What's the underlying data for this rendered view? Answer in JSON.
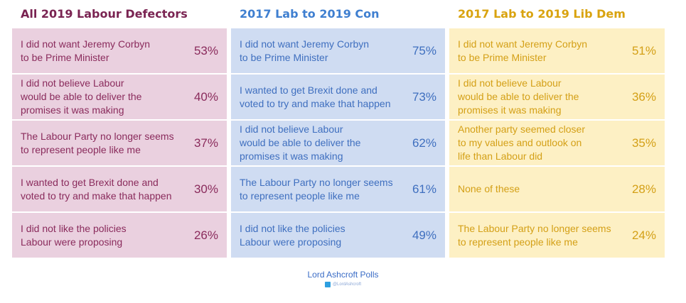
{
  "colors": {
    "col1_bg": "#ead0df",
    "col1_title": "#7a2452",
    "col1_text": "#8a2b5c",
    "col2_bg": "#cfdcf2",
    "col2_title": "#3f7fd0",
    "col2_text": "#3f6fbf",
    "col3_bg": "#fdf0c4",
    "col3_title": "#d9a30f",
    "col3_text": "#d4a017"
  },
  "chart_data": [
    {
      "type": "table",
      "title": "All 2019 Labour Defectors",
      "rows": [
        {
          "label": "I did not want Jeremy Corbyn\nto be Prime Minister",
          "value": "53%"
        },
        {
          "label": "I did not believe Labour\nwould be able to deliver the\npromises it was making",
          "value": "40%"
        },
        {
          "label": "The Labour Party no longer seems\nto represent people like me",
          "value": "37%"
        },
        {
          "label": "I wanted to get Brexit done and\nvoted to try and make that happen",
          "value": "30%"
        },
        {
          "label": "I did not like the policies\nLabour were proposing",
          "value": "26%"
        }
      ]
    },
    {
      "type": "table",
      "title": "2017 Lab to 2019 Con",
      "rows": [
        {
          "label": "I did not want Jeremy Corbyn\nto be Prime Minister",
          "value": "75%"
        },
        {
          "label": "I wanted to get Brexit done and\nvoted to try and make that happen",
          "value": "73%"
        },
        {
          "label": "I did not believe Labour\nwould be able to deliver the\npromises it was making",
          "value": "62%"
        },
        {
          "label": "The Labour Party no longer seems\nto represent people like me",
          "value": "61%"
        },
        {
          "label": "I did not like the policies\nLabour were proposing",
          "value": "49%"
        }
      ]
    },
    {
      "type": "table",
      "title": "2017 Lab to 2019 Lib Dem",
      "rows": [
        {
          "label": "I did not want Jeremy Corbyn\nto be Prime Minister",
          "value": "51%"
        },
        {
          "label": "I did not believe Labour\nwould be able to deliver the\npromises it was making",
          "value": "36%"
        },
        {
          "label": "Another party seemed closer\nto my values and outlook on\nlife than Labour did",
          "value": "35%"
        },
        {
          "label": "None of these",
          "value": "28%"
        },
        {
          "label": "The Labour Party no longer seems\nto represent people like me",
          "value": "24%"
        }
      ]
    }
  ],
  "footer": {
    "brand": "Lord Ashcroft Polls",
    "handle": "@LordAshcroft",
    "icon": "twitter-icon"
  }
}
